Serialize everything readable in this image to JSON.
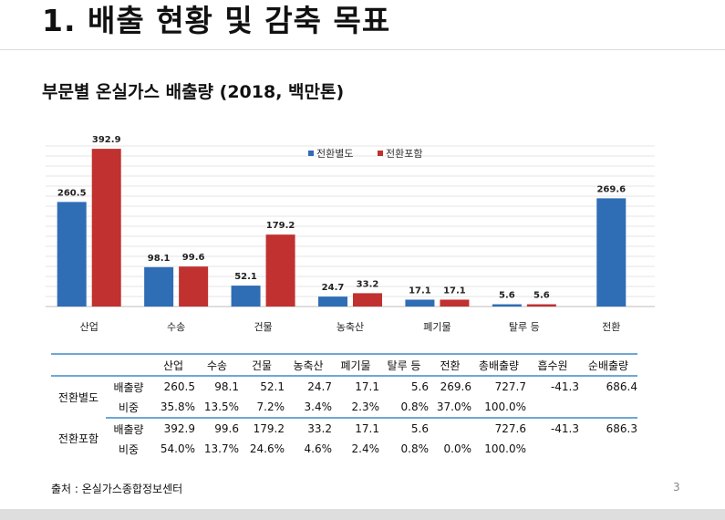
{
  "slide_title": "1. 배출 현황 및 감축 목표",
  "chart_data": {
    "type": "bar",
    "title": "부문별 온실가스 배출량 (2018, 백만톤)",
    "categories": [
      "산업",
      "수송",
      "건물",
      "농축산",
      "폐기물",
      "탈루 등",
      "전환"
    ],
    "series": [
      {
        "name": "전환별도",
        "color": "#2f6db5",
        "values": [
          260.5,
          98.1,
          52.1,
          24.7,
          17.1,
          5.6,
          269.6
        ]
      },
      {
        "name": "전환포함",
        "color": "#c0312f",
        "values": [
          392.9,
          99.6,
          179.2,
          33.2,
          17.1,
          5.6,
          null
        ]
      }
    ],
    "value_labels": [
      [
        "260.5",
        "98.1",
        "52.1",
        "24.7",
        "17.1",
        "5.6",
        "269.6"
      ],
      [
        "392.9",
        "99.6",
        "179.2",
        "33.2",
        "17.1",
        "5.6",
        ""
      ]
    ],
    "ylim": [
      0,
      400
    ],
    "grid": true,
    "legend": "top-center"
  },
  "table": {
    "headers": [
      "",
      "",
      "산업",
      "수송",
      "건물",
      "농축산",
      "폐기물",
      "탈루 등",
      "전환",
      "총배출량",
      "흡수원",
      "순배출량"
    ],
    "groups": [
      {
        "name": "전환별도",
        "rows": [
          {
            "label": "배출량",
            "cells": [
              "260.5",
              "98.1",
              "52.1",
              "24.7",
              "17.1",
              "5.6",
              "269.6",
              "727.7",
              "-41.3",
              "686.4"
            ]
          },
          {
            "label": "비중",
            "cells": [
              "35.8%",
              "13.5%",
              "7.2%",
              "3.4%",
              "2.3%",
              "0.8%",
              "37.0%",
              "100.0%",
              "",
              ""
            ]
          }
        ]
      },
      {
        "name": "전환포함",
        "rows": [
          {
            "label": "배출량",
            "cells": [
              "392.9",
              "99.6",
              "179.2",
              "33.2",
              "17.1",
              "5.6",
              "",
              "727.6",
              "-41.3",
              "686.3"
            ]
          },
          {
            "label": "비중",
            "cells": [
              "54.0%",
              "13.7%",
              "24.6%",
              "4.6%",
              "2.4%",
              "0.8%",
              "0.0%",
              "100.0%",
              "",
              ""
            ]
          }
        ]
      }
    ]
  },
  "source": "출처 : 온실가스종합정보센터",
  "page_number": "3"
}
